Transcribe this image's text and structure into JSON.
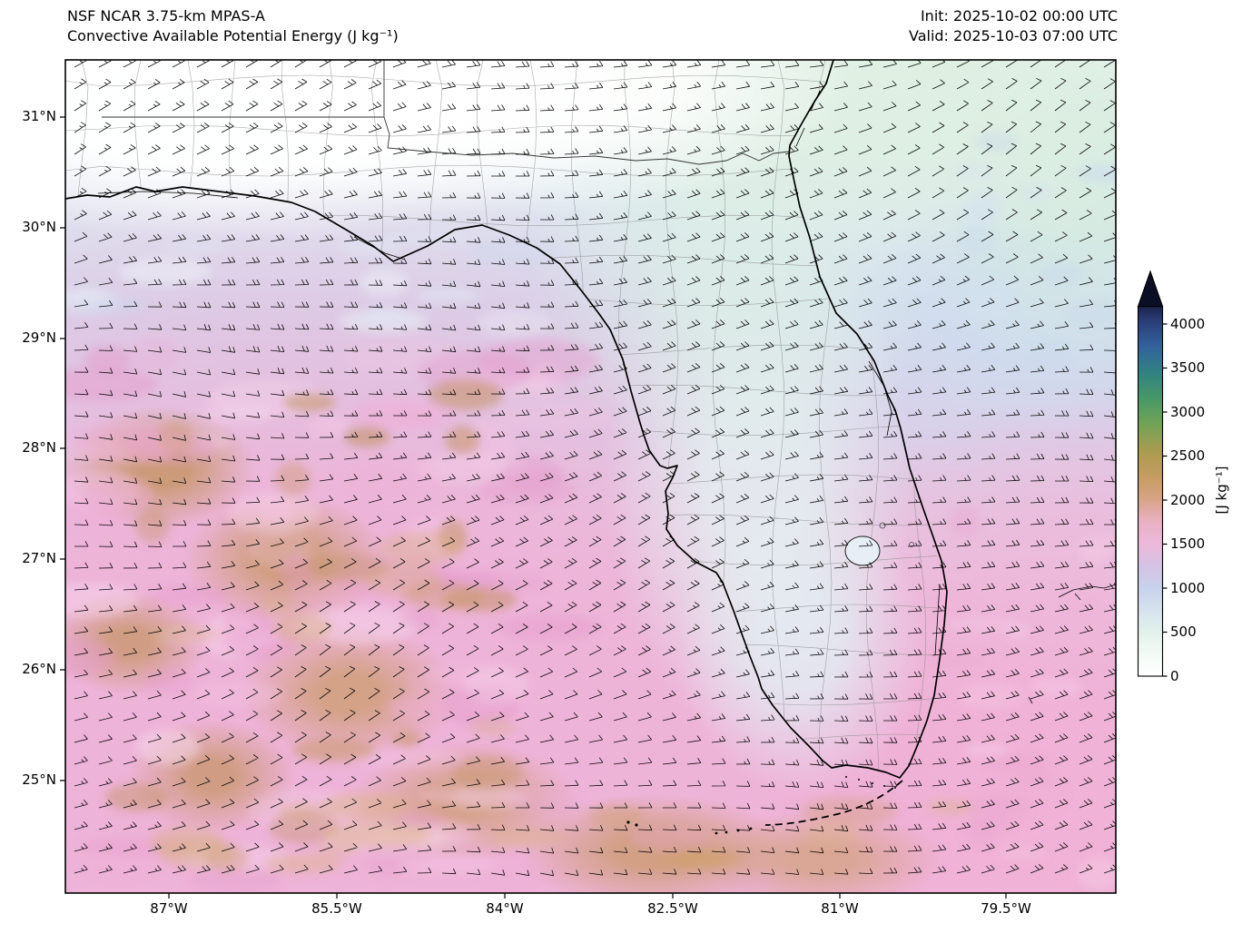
{
  "header": {
    "title_line1": "NSF NCAR 3.75-km MPAS-A",
    "title_line2": "Convective Available Potential Energy (J kg⁻¹)",
    "init_label": "Init: 2025-10-02 00:00 UTC",
    "valid_label": "Valid: 2025-10-03 07:00 UTC"
  },
  "chart_data": {
    "type": "heatmap",
    "title": "Convective Available Potential Energy (J kg⁻¹)",
    "model": "NSF NCAR 3.75-km MPAS-A",
    "init_time": "2025-10-02 00:00 UTC",
    "valid_time": "2025-10-03 07:00 UTC",
    "variable": "CAPE",
    "units": "J kg⁻¹",
    "region": "Florida, southeastern U.S., eastern Gulf of Mexico and western Atlantic",
    "x_axis": {
      "label": "",
      "ticks": [
        "87°W",
        "85.5°W",
        "84°W",
        "82.5°W",
        "81°W",
        "79.5°W"
      ]
    },
    "y_axis": {
      "label": "",
      "ticks": [
        "31°N",
        "30°N",
        "29°N",
        "28°N",
        "27°N",
        "26°N",
        "25°N"
      ]
    },
    "colorbar": {
      "label": "[J kg⁻¹]",
      "tick_values": [
        0,
        500,
        1000,
        1500,
        2000,
        2500,
        3000,
        3500,
        4000
      ],
      "extend": "max",
      "extend_color": "#0b0f26",
      "stops": [
        {
          "value": 0,
          "color": "#ffffff"
        },
        {
          "value": 250,
          "color": "#f3faf6"
        },
        {
          "value": 500,
          "color": "#e3f1ea"
        },
        {
          "value": 750,
          "color": "#d6e2ef"
        },
        {
          "value": 1000,
          "color": "#c8d2ec"
        },
        {
          "value": 1250,
          "color": "#d5c3e5"
        },
        {
          "value": 1500,
          "color": "#ecb8da"
        },
        {
          "value": 1750,
          "color": "#eab1c5"
        },
        {
          "value": 2000,
          "color": "#d8a489"
        },
        {
          "value": 2250,
          "color": "#c69c63"
        },
        {
          "value": 2550,
          "color": "#ab9b50"
        },
        {
          "value": 2850,
          "color": "#74a356"
        },
        {
          "value": 3150,
          "color": "#489867"
        },
        {
          "value": 3450,
          "color": "#318282"
        },
        {
          "value": 3750,
          "color": "#33619e"
        },
        {
          "value": 4050,
          "color": "#293a74"
        },
        {
          "value": 4200,
          "color": "#1b2348"
        }
      ]
    },
    "overlays": [
      "wind barbs (mostly easterly, ~10-20 kt)",
      "coastlines",
      "state borders",
      "county borders"
    ],
    "field_regions": [
      {
        "region": "inland Georgia / Alabama (north of coast)",
        "cape_j_per_kg": "0-200"
      },
      {
        "region": "Florida panhandle land",
        "cape_j_per_kg": "100-500"
      },
      {
        "region": "Florida peninsula interior",
        "cape_j_per_kg": "300-900"
      },
      {
        "region": "northern Gulf coastal waters",
        "cape_j_per_kg": "700-1100"
      },
      {
        "region": "central and eastern Gulf of Mexico",
        "cape_j_per_kg": "1400-1800"
      },
      {
        "region": "southwestern Gulf mottled maxima",
        "cape_j_per_kg": "1800-2500"
      },
      {
        "region": "Atlantic east of Florida",
        "cape_j_per_kg": "1000-1600"
      },
      {
        "region": "Florida Straits and near Cuba",
        "cape_j_per_kg": "1600-2400"
      }
    ]
  }
}
